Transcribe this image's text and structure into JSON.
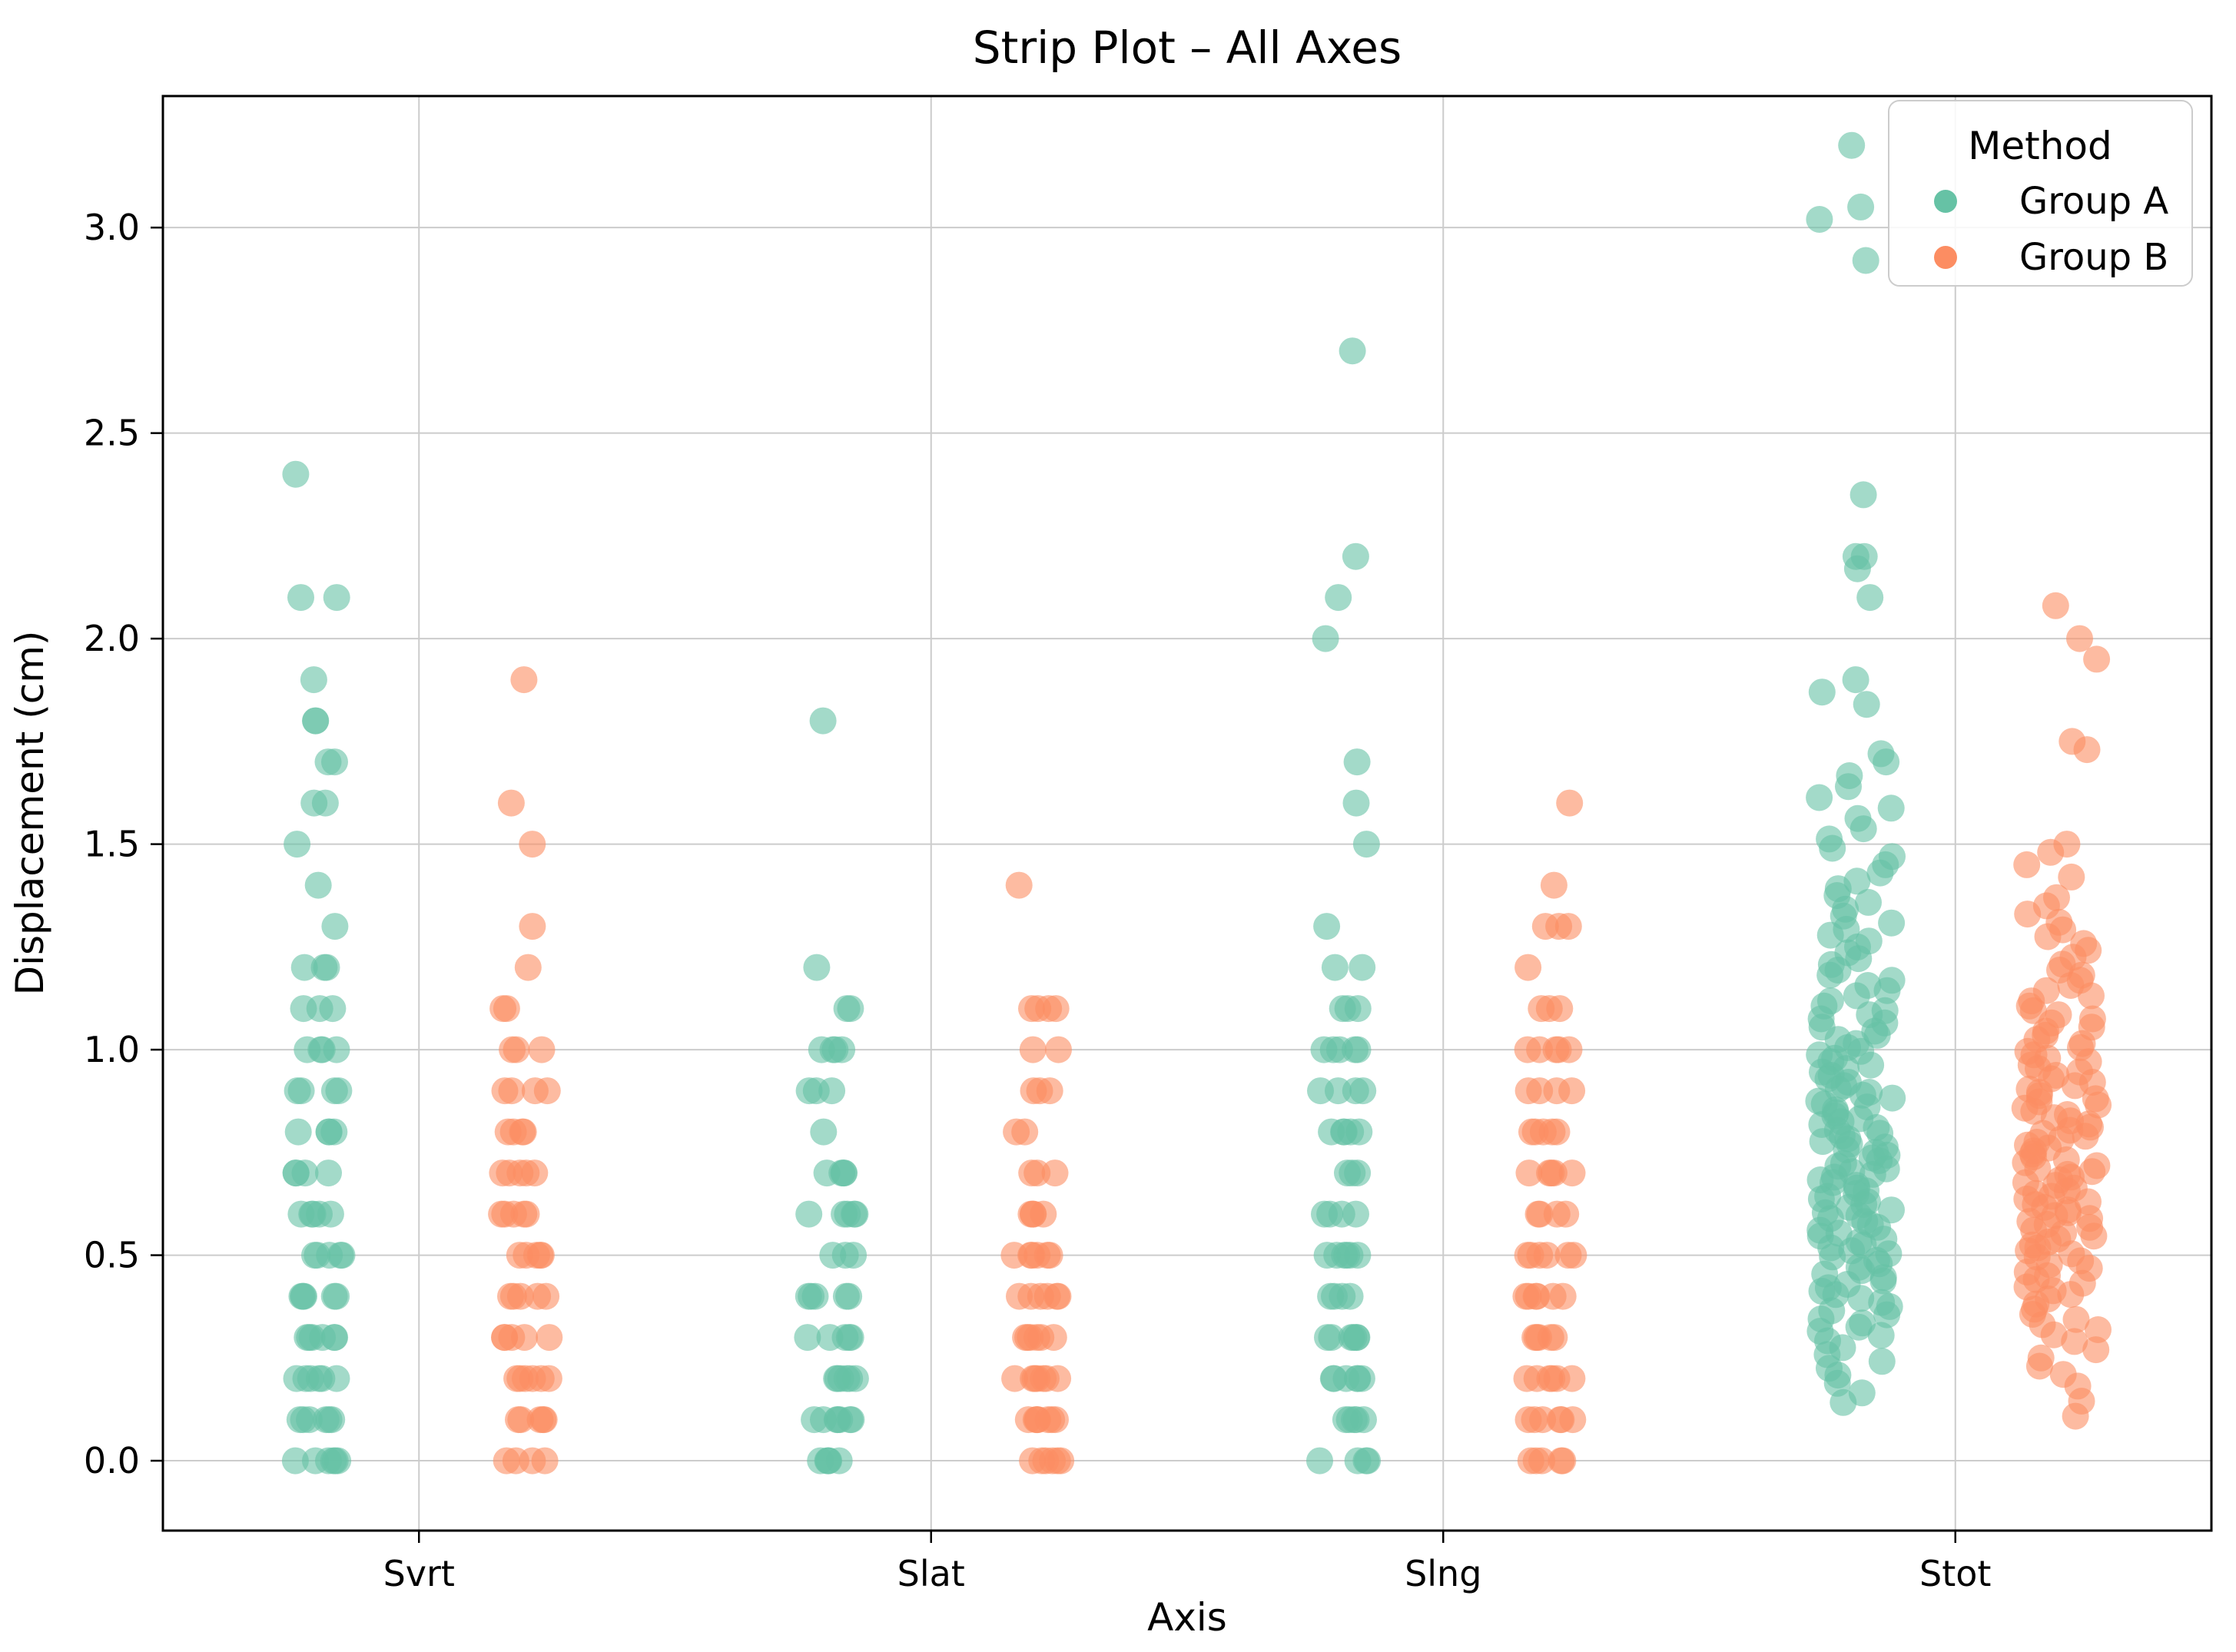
{
  "chart_data": {
    "type": "scatter",
    "subtype": "strip",
    "title": "Strip Plot – All Axes",
    "xlabel": "Axis",
    "ylabel": "Displacement (cm)",
    "categories": [
      "Svrt",
      "Slat",
      "Slng",
      "Stot"
    ],
    "ytick_labels": [
      "0.0",
      "0.5",
      "1.0",
      "1.5",
      "2.0",
      "2.5",
      "3.0"
    ],
    "ytick_values": [
      0.0,
      0.5,
      1.0,
      1.5,
      2.0,
      2.5,
      3.0
    ],
    "ylim": [
      -0.17,
      3.32
    ],
    "xlim_categories": [
      -0.5,
      3.5
    ],
    "grid": true,
    "legend": {
      "title": "Method",
      "position": "upper right",
      "entries": [
        {
          "label": "Group A",
          "color": "#66c2a5"
        },
        {
          "label": "Group B",
          "color": "#fc8d62"
        }
      ]
    },
    "clusters": [
      {
        "category": "Svrt",
        "group": "Group A",
        "value_counts": {
          "0.0": 6,
          "0.1": 6,
          "0.2": 6,
          "0.3": 6,
          "0.4": 5,
          "0.5": 5,
          "0.6": 5,
          "0.7": 4,
          "0.8": 4,
          "0.9": 4,
          "1.0": 4,
          "1.1": 3,
          "1.2": 3,
          "1.3": 1,
          "1.4": 1,
          "1.5": 1,
          "1.6": 2,
          "1.7": 2,
          "1.8": 2,
          "1.9": 1,
          "2.1": 2,
          "2.4": 1
        }
      },
      {
        "category": "Svrt",
        "group": "Group B",
        "value_counts": {
          "0.0": 4,
          "0.1": 5,
          "0.2": 6,
          "0.3": 5,
          "0.4": 5,
          "0.5": 5,
          "0.6": 5,
          "0.7": 5,
          "0.8": 4,
          "0.9": 4,
          "1.0": 3,
          "1.1": 2,
          "1.2": 1,
          "1.3": 1,
          "1.5": 1,
          "1.6": 1,
          "1.9": 1
        }
      },
      {
        "category": "Slat",
        "group": "Group A",
        "value_counts": {
          "0.0": 5,
          "0.1": 7,
          "0.2": 6,
          "0.3": 5,
          "0.4": 5,
          "0.5": 3,
          "0.6": 5,
          "0.7": 4,
          "0.8": 1,
          "0.9": 3,
          "1.0": 4,
          "1.1": 2,
          "1.2": 1,
          "1.8": 1
        }
      },
      {
        "category": "Slat",
        "group": "Group B",
        "value_counts": {
          "0.0": 6,
          "0.1": 7,
          "0.2": 7,
          "0.3": 6,
          "0.4": 6,
          "0.5": 6,
          "0.6": 4,
          "0.7": 3,
          "0.8": 2,
          "0.9": 3,
          "1.0": 2,
          "1.1": 4,
          "1.4": 1
        }
      },
      {
        "category": "Slng",
        "group": "Group A",
        "value_counts": {
          "0.0": 4,
          "0.1": 5,
          "0.2": 6,
          "0.3": 6,
          "0.4": 4,
          "0.5": 6,
          "0.6": 4,
          "0.7": 3,
          "0.8": 5,
          "0.9": 4,
          "1.0": 5,
          "1.1": 3,
          "1.2": 2,
          "1.3": 1,
          "1.5": 1,
          "1.6": 1,
          "1.7": 1,
          "2.0": 1,
          "2.1": 1,
          "2.2": 1,
          "2.7": 1
        }
      },
      {
        "category": "Slng",
        "group": "Group B",
        "value_counts": {
          "0.0": 5,
          "0.1": 6,
          "0.2": 6,
          "0.3": 5,
          "0.4": 6,
          "0.5": 6,
          "0.6": 4,
          "0.7": 5,
          "0.8": 5,
          "0.9": 4,
          "1.0": 5,
          "1.1": 3,
          "1.2": 1,
          "1.3": 3,
          "1.4": 1,
          "1.6": 1
        }
      },
      {
        "category": "Stot",
        "group": "Group A",
        "bins": [
          {
            "lo": 0.13,
            "hi": 0.2,
            "n": 3
          },
          {
            "lo": 0.2,
            "hi": 0.3,
            "n": 6
          },
          {
            "lo": 0.3,
            "hi": 0.4,
            "n": 10
          },
          {
            "lo": 0.4,
            "hi": 0.5,
            "n": 12
          },
          {
            "lo": 0.5,
            "hi": 0.6,
            "n": 14
          },
          {
            "lo": 0.6,
            "hi": 0.7,
            "n": 15
          },
          {
            "lo": 0.7,
            "hi": 0.8,
            "n": 15
          },
          {
            "lo": 0.8,
            "hi": 0.9,
            "n": 14
          },
          {
            "lo": 0.9,
            "hi": 1.0,
            "n": 12
          },
          {
            "lo": 1.0,
            "hi": 1.1,
            "n": 10
          },
          {
            "lo": 1.1,
            "hi": 1.2,
            "n": 8
          },
          {
            "lo": 1.2,
            "hi": 1.3,
            "n": 7
          },
          {
            "lo": 1.3,
            "hi": 1.4,
            "n": 6
          },
          {
            "lo": 1.4,
            "hi": 1.5,
            "n": 5
          },
          {
            "lo": 1.5,
            "hi": 1.6,
            "n": 4
          },
          {
            "lo": 1.6,
            "hi": 1.68,
            "n": 3
          }
        ],
        "extras": [
          1.7,
          1.72,
          1.84,
          1.87,
          1.9,
          2.1,
          2.17,
          2.2,
          2.2,
          2.35,
          2.92,
          3.02,
          3.05,
          3.2
        ]
      },
      {
        "category": "Stot",
        "group": "Group B",
        "bins": [
          {
            "lo": 0.09,
            "hi": 0.2,
            "n": 3
          },
          {
            "lo": 0.2,
            "hi": 0.3,
            "n": 5
          },
          {
            "lo": 0.3,
            "hi": 0.4,
            "n": 8
          },
          {
            "lo": 0.4,
            "hi": 0.5,
            "n": 11
          },
          {
            "lo": 0.5,
            "hi": 0.6,
            "n": 14
          },
          {
            "lo": 0.6,
            "hi": 0.7,
            "n": 15
          },
          {
            "lo": 0.7,
            "hi": 0.8,
            "n": 14
          },
          {
            "lo": 0.8,
            "hi": 0.9,
            "n": 13
          },
          {
            "lo": 0.9,
            "hi": 1.0,
            "n": 12
          },
          {
            "lo": 1.0,
            "hi": 1.1,
            "n": 10
          },
          {
            "lo": 1.1,
            "hi": 1.2,
            "n": 8
          },
          {
            "lo": 1.2,
            "hi": 1.3,
            "n": 6
          },
          {
            "lo": 1.3,
            "hi": 1.38,
            "n": 4
          }
        ],
        "extras": [
          1.42,
          1.45,
          1.48,
          1.5,
          1.73,
          1.75,
          1.95,
          2.0,
          2.08
        ]
      }
    ]
  }
}
